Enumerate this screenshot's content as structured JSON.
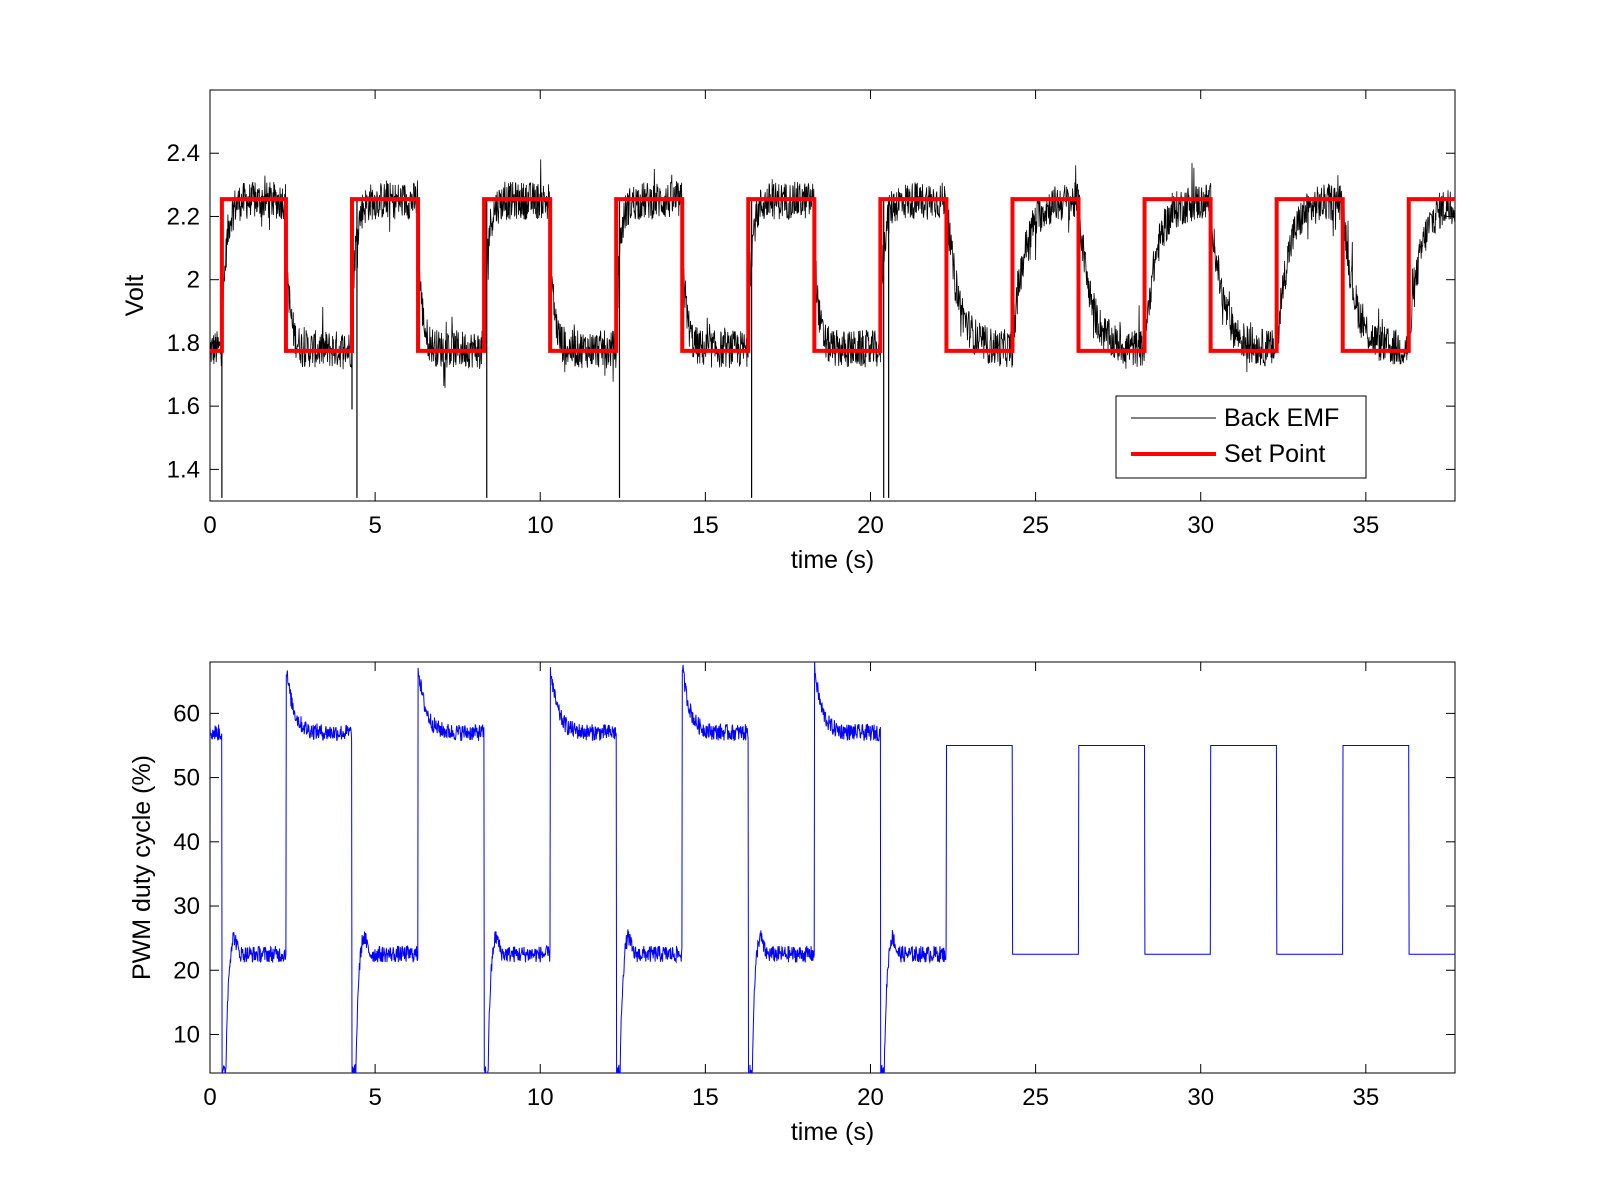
{
  "chart_data": [
    {
      "type": "line",
      "xlabel": "time (s)",
      "ylabel": "Volt",
      "xlim": [
        0,
        37.7
      ],
      "ylim": [
        1.3,
        2.6
      ],
      "x_ticks": [
        0,
        5,
        10,
        15,
        20,
        25,
        30,
        35
      ],
      "y_ticks": [
        1.4,
        1.6,
        1.8,
        2.0,
        2.2,
        2.4
      ],
      "y_tick_labels": [
        "1.4",
        "1.6",
        "1.8",
        "2",
        "2.2",
        "2.4"
      ],
      "grid": false,
      "legend": {
        "position": "bottom-right",
        "entries": [
          "Back EMF",
          "Set Point"
        ]
      },
      "series": [
        {
          "name": "Back EMF",
          "color": "#000000",
          "style": "noisy line tracking set point",
          "high_level": 2.25,
          "low_level": 1.78,
          "noise_band": 0.06,
          "spikes": [
            {
              "t": 0.36,
              "v": 1.31
            },
            {
              "t": 4.3,
              "v": 1.59
            },
            {
              "t": 4.45,
              "v": 1.31
            },
            {
              "t": 8.38,
              "v": 1.31
            },
            {
              "t": 12.4,
              "v": 1.31
            },
            {
              "t": 16.4,
              "v": 1.31
            },
            {
              "t": 20.4,
              "v": 1.31
            },
            {
              "t": 20.55,
              "v": 1.31
            }
          ]
        },
        {
          "name": "Set Point",
          "color": "#ff0000",
          "style": "square wave",
          "high": 2.255,
          "low": 1.775,
          "transitions": [
            0.36,
            2.3,
            4.3,
            6.3,
            8.3,
            10.3,
            12.3,
            14.3,
            16.3,
            18.3,
            20.3,
            22.3,
            24.3,
            26.3,
            28.3,
            30.3,
            32.3,
            34.3,
            36.3
          ],
          "initial": "low"
        }
      ]
    },
    {
      "type": "line",
      "xlabel": "time (s)",
      "ylabel": "PWM duty cycle (%)",
      "xlim": [
        0,
        37.7
      ],
      "ylim": [
        4,
        68
      ],
      "x_ticks": [
        0,
        5,
        10,
        15,
        20,
        25,
        30,
        35
      ],
      "y_ticks": [
        10,
        20,
        30,
        40,
        50,
        60
      ],
      "grid": false,
      "series": [
        {
          "color": "#0000ff",
          "style": "noisy closed-loop response then clean open-loop square wave",
          "closed_loop_end": 22.3,
          "closed_loop_high": 57,
          "closed_loop_low": 22.5,
          "peak_high": 67.5,
          "peak_low": 4,
          "open_loop_high": 55,
          "open_loop_low": 22.5,
          "transitions": [
            0.36,
            2.3,
            4.3,
            6.3,
            8.3,
            10.3,
            12.3,
            14.3,
            16.3,
            18.3,
            20.3,
            22.3,
            24.3,
            26.3,
            28.3,
            30.3,
            32.3,
            34.3,
            36.3
          ]
        }
      ]
    }
  ]
}
